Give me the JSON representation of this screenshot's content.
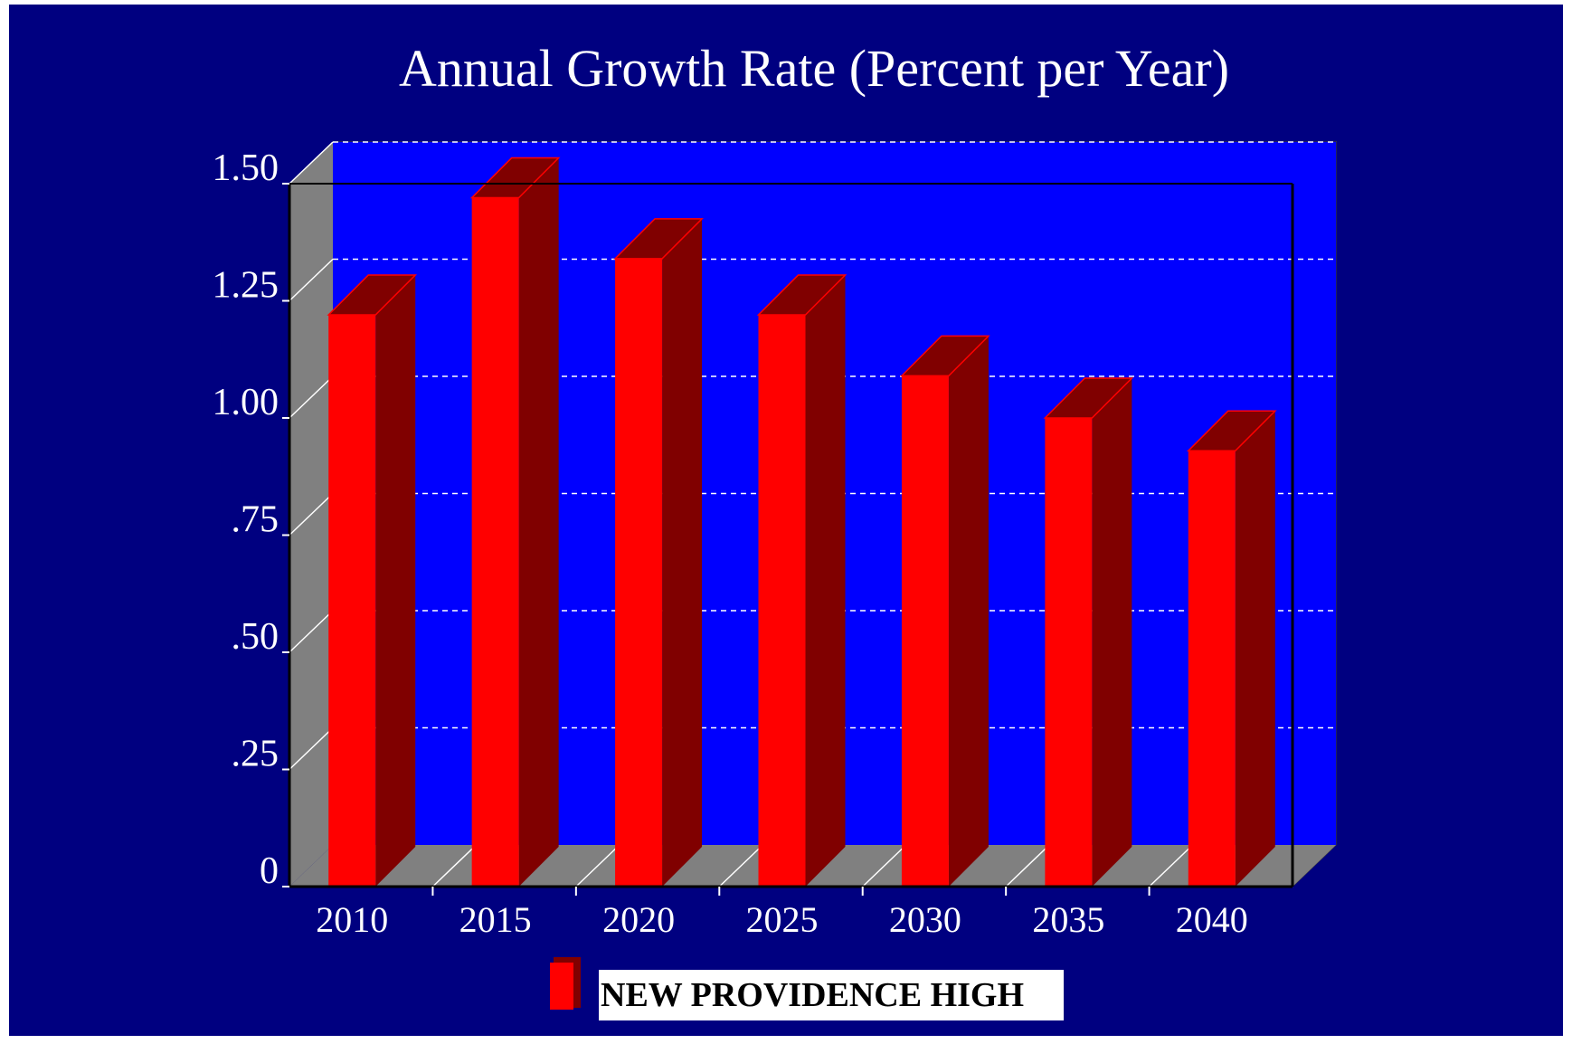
{
  "chart_data": {
    "type": "bar",
    "title": "Annual Growth Rate (Percent per Year)",
    "xlabel": "",
    "ylabel": "",
    "categories": [
      "2010",
      "2015",
      "2020",
      "2025",
      "2030",
      "2035",
      "2040"
    ],
    "series": [
      {
        "name": "NEW PROVIDENCE HIGH",
        "values": [
          1.22,
          1.47,
          1.34,
          1.22,
          1.09,
          1.0,
          0.93
        ]
      }
    ],
    "ylim": [
      0,
      1.5
    ],
    "yticks": [
      0,
      0.25,
      0.5,
      0.75,
      1.0,
      1.25,
      1.5
    ],
    "ytick_labels": [
      "0",
      ".25",
      ".50",
      ".75",
      "1.00",
      "1.25",
      "1.50"
    ],
    "grid": true,
    "three_d": true,
    "legend": "bottom-center",
    "colors": {
      "page_background": "#ffffff",
      "outer_background": "#000080",
      "plot_background": "#0000ff",
      "wall": "#808080",
      "bar_front": "#ff0000",
      "bar_side": "#800000",
      "gridline": "#ffffff",
      "text": "#ffffff",
      "legend_box": "#ffffff",
      "legend_text": "#000000"
    }
  }
}
